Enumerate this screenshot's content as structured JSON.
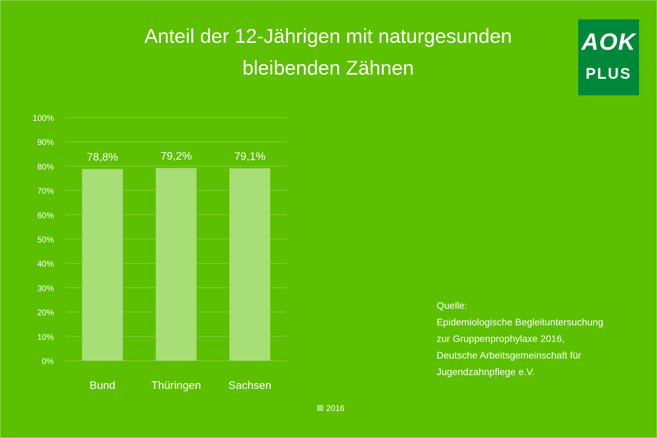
{
  "header": {
    "title_line1": "Anteil der 12-Jährigen mit naturgesunden",
    "title_line2": "bleibenden Zähnen"
  },
  "logo": {
    "text_top": "AOK",
    "text_bottom": "PLUS",
    "color": "#00883a"
  },
  "source": {
    "label": "Quelle:",
    "lines": [
      "Epidemiologische Begleituntersuchung",
      "zur Gruppenprophylaxe 2016,",
      "Deutsche Arbeitsgemeinschaft für",
      "Jugendzahnpflege e.V."
    ]
  },
  "colors": {
    "background": "#5cbf00",
    "bar": "#a8de76",
    "gridline": "#86d13e"
  },
  "chart_data": {
    "type": "bar",
    "title": "Anteil der 12-Jährigen mit naturgesunden bleibenden Zähnen",
    "categories": [
      "Bund",
      "Thüringen",
      "Sachsen"
    ],
    "series": [
      {
        "name": "2016",
        "values": [
          78.8,
          79.2,
          79.1
        ]
      }
    ],
    "data_labels": [
      "78,8%",
      "79,2%",
      "79,1%"
    ],
    "yticks": [
      "0%",
      "10%",
      "20%",
      "30%",
      "40%",
      "50%",
      "60%",
      "70%",
      "80%",
      "90%",
      "100%"
    ],
    "ylim": [
      0,
      100
    ],
    "grid": true,
    "legend": "bottom"
  }
}
